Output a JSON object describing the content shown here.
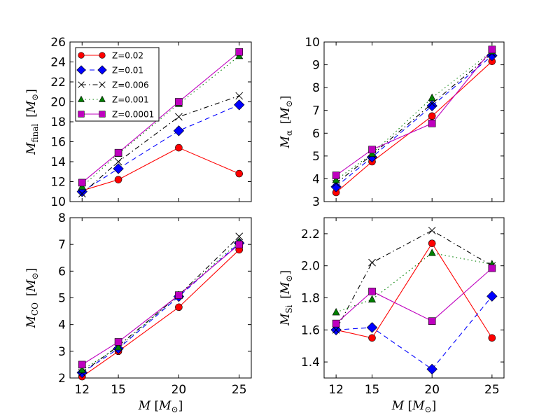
{
  "figure": {
    "background": "#ffffff"
  },
  "chart_data": [
    {
      "type": "line",
      "panel": "top-left",
      "title": "",
      "xlabel": "",
      "ylabel": "M_final [M_sun]",
      "ylabel_parts": {
        "main": "M",
        "sub": "final",
        "unit": "[M",
        "unit_sub": "⊙",
        "close": "]"
      },
      "x": [
        12,
        15,
        20,
        25
      ],
      "xlim": [
        11,
        26
      ],
      "ylim": [
        10,
        26
      ],
      "yticks": [
        10,
        12,
        14,
        16,
        18,
        20,
        22,
        24,
        26
      ],
      "xticks": [
        12,
        15,
        20,
        25
      ],
      "show_xtick_labels": false,
      "legend": {
        "placement": "top-left"
      },
      "series": [
        {
          "name": "Z=0.02",
          "values": [
            11.1,
            12.2,
            15.4,
            12.8
          ]
        },
        {
          "name": "Z=0.01",
          "values": [
            11.0,
            13.3,
            17.1,
            19.7
          ]
        },
        {
          "name": "Z=0.006",
          "values": [
            10.8,
            14.0,
            18.5,
            20.6
          ]
        },
        {
          "name": "Z=0.001",
          "values": [
            11.5,
            14.8,
            19.8,
            24.6
          ]
        },
        {
          "name": "Z=0.0001",
          "values": [
            11.9,
            14.9,
            20.0,
            25.0
          ]
        }
      ]
    },
    {
      "type": "line",
      "panel": "top-right",
      "title": "",
      "xlabel": "",
      "ylabel": "M_alpha [M_sun]",
      "ylabel_parts": {
        "main": "M",
        "sub": "α",
        "unit": "[M",
        "unit_sub": "⊙",
        "close": "]"
      },
      "x": [
        12,
        15,
        20,
        25
      ],
      "xlim": [
        11,
        26
      ],
      "ylim": [
        3,
        10
      ],
      "yticks": [
        3,
        4,
        5,
        6,
        7,
        8,
        9,
        10
      ],
      "xticks": [
        12,
        15,
        20,
        25
      ],
      "show_xtick_labels": false,
      "series": [
        {
          "name": "Z=0.02",
          "values": [
            3.4,
            4.75,
            6.75,
            9.15
          ]
        },
        {
          "name": "Z=0.01",
          "values": [
            3.65,
            4.95,
            7.2,
            9.4
          ]
        },
        {
          "name": "Z=0.006",
          "values": [
            3.8,
            5.05,
            7.3,
            9.5
          ]
        },
        {
          "name": "Z=0.001",
          "values": [
            3.95,
            5.1,
            7.55,
            9.6
          ]
        },
        {
          "name": "Z=0.0001",
          "values": [
            4.15,
            5.28,
            6.43,
            9.67
          ]
        }
      ]
    },
    {
      "type": "line",
      "panel": "bottom-left",
      "title": "",
      "xlabel": "M [M_sun]",
      "xlabel_parts": {
        "main": "M",
        "unit": "[M",
        "unit_sub": "⊙",
        "close": "]"
      },
      "ylabel": "M_CO [M_sun]",
      "ylabel_parts": {
        "main": "M",
        "sub": "CO",
        "unit": "[M",
        "unit_sub": "⊙",
        "close": "]"
      },
      "x": [
        12,
        15,
        20,
        25
      ],
      "xlim": [
        11,
        26
      ],
      "ylim": [
        2,
        8
      ],
      "yticks": [
        2,
        3,
        4,
        5,
        6,
        7,
        8
      ],
      "xticks": [
        12,
        15,
        20,
        25
      ],
      "xtick_labels": [
        "12",
        "15",
        "20",
        "25"
      ],
      "show_xtick_labels": true,
      "series": [
        {
          "name": "Z=0.02",
          "values": [
            2.05,
            3.0,
            4.65,
            6.8
          ]
        },
        {
          "name": "Z=0.01",
          "values": [
            2.2,
            3.1,
            5.05,
            7.05
          ]
        },
        {
          "name": "Z=0.006",
          "values": [
            2.2,
            3.2,
            5.1,
            7.3
          ]
        },
        {
          "name": "Z=0.001",
          "values": [
            2.3,
            3.15,
            5.1,
            7.1
          ]
        },
        {
          "name": "Z=0.0001",
          "values": [
            2.5,
            3.35,
            5.1,
            7.0
          ]
        }
      ]
    },
    {
      "type": "line",
      "panel": "bottom-right",
      "title": "",
      "xlabel": "M [M_sun]",
      "xlabel_parts": {
        "main": "M",
        "unit": "[M",
        "unit_sub": "⊙",
        "close": "]"
      },
      "ylabel": "M_Si [M_sun]",
      "ylabel_parts": {
        "main": "M",
        "sub": "Si",
        "unit": "[M",
        "unit_sub": "⊙",
        "close": "]"
      },
      "x": [
        12,
        15,
        20,
        25
      ],
      "xlim": [
        11,
        26
      ],
      "ylim": [
        1.3,
        2.3
      ],
      "yticks": [
        1.4,
        1.6,
        1.8,
        2.0,
        2.2
      ],
      "ytick_labels": [
        "1.4",
        "1.6",
        "1.8",
        "2.0",
        "2.2"
      ],
      "xticks": [
        12,
        15,
        20,
        25
      ],
      "xtick_labels": [
        "12",
        "15",
        "20",
        "25"
      ],
      "show_xtick_labels": true,
      "series": [
        {
          "name": "Z=0.02",
          "values": [
            1.6,
            1.55,
            2.14,
            1.55
          ]
        },
        {
          "name": "Z=0.01",
          "values": [
            1.6,
            1.615,
            1.355,
            1.81
          ]
        },
        {
          "name": "Z=0.006",
          "values": [
            1.6,
            2.02,
            2.22,
            2.0
          ]
        },
        {
          "name": "Z=0.001",
          "values": [
            1.71,
            1.79,
            2.08,
            2.01
          ]
        },
        {
          "name": "Z=0.0001",
          "values": [
            1.64,
            1.84,
            1.655,
            1.985
          ]
        }
      ]
    }
  ],
  "series_styles": [
    {
      "name": "Z=0.02",
      "color": "#ff0000",
      "marker": "circle",
      "dash": "solid"
    },
    {
      "name": "Z=0.01",
      "color": "#0000ff",
      "marker": "diamond",
      "dash": "dashed"
    },
    {
      "name": "Z=0.006",
      "color": "#000000",
      "marker": "x",
      "dash": "dashdot"
    },
    {
      "name": "Z=0.001",
      "color": "#008000",
      "marker": "triangle",
      "dash": "dotted"
    },
    {
      "name": "Z=0.0001",
      "color": "#bf00bf",
      "marker": "square",
      "dash": "solid"
    }
  ]
}
